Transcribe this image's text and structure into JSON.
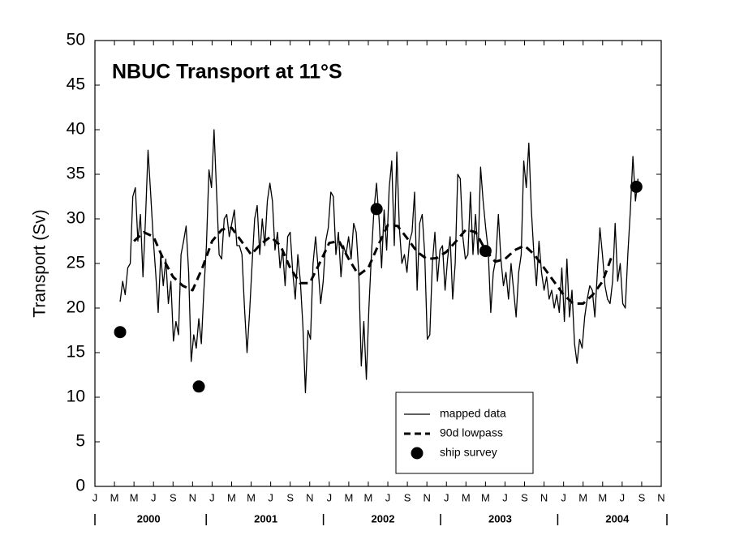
{
  "chart_data": {
    "type": "line",
    "title": "NBUC Transport at 11°S",
    "y_label": "Transport (Sv)",
    "xlim": [
      0,
      58
    ],
    "xticks": [
      {
        "value": 0,
        "label": "J"
      },
      {
        "value": 2,
        "label": "M"
      },
      {
        "value": 4,
        "label": "M"
      },
      {
        "value": 6,
        "label": "J"
      },
      {
        "value": 8,
        "label": "S"
      },
      {
        "value": 10,
        "label": "N"
      },
      {
        "value": 12,
        "label": "J"
      },
      {
        "value": 14,
        "label": "M"
      },
      {
        "value": 16,
        "label": "M"
      },
      {
        "value": 18,
        "label": "J"
      },
      {
        "value": 20,
        "label": "S"
      },
      {
        "value": 22,
        "label": "N"
      },
      {
        "value": 24,
        "label": "J"
      },
      {
        "value": 26,
        "label": "M"
      },
      {
        "value": 28,
        "label": "M"
      },
      {
        "value": 30,
        "label": "J"
      },
      {
        "value": 32,
        "label": "S"
      },
      {
        "value": 34,
        "label": "N"
      },
      {
        "value": 36,
        "label": "J"
      },
      {
        "value": 38,
        "label": "M"
      },
      {
        "value": 40,
        "label": "M"
      },
      {
        "value": 42,
        "label": "J"
      },
      {
        "value": 44,
        "label": "S"
      },
      {
        "value": 46,
        "label": "N"
      },
      {
        "value": 48,
        "label": "J"
      },
      {
        "value": 50,
        "label": "M"
      },
      {
        "value": 52,
        "label": "M"
      },
      {
        "value": 54,
        "label": "J"
      },
      {
        "value": 56,
        "label": "S"
      },
      {
        "value": 58,
        "label": "N"
      }
    ],
    "year_labels": [
      "2000",
      "2001",
      "2002",
      "2003",
      "2004"
    ],
    "ylim": [
      0,
      50
    ],
    "yticks": [
      0,
      5,
      10,
      15,
      20,
      25,
      30,
      35,
      40,
      45,
      50
    ],
    "grid": false,
    "legend_loc": "lower right",
    "series": [
      {
        "name": "mapped data",
        "color": "#000000",
        "line_style": "solid",
        "x": [
          2.58,
          2.84,
          3.1,
          3.36,
          3.62,
          3.88,
          4.14,
          4.4,
          4.66,
          4.92,
          5.18,
          5.44,
          5.7,
          5.96,
          6.22,
          6.48,
          6.74,
          7,
          7.26,
          7.52,
          7.78,
          8.04,
          8.3,
          8.56,
          8.82,
          9.08,
          9.34,
          9.6,
          9.86,
          10.12,
          10.38,
          10.64,
          10.9,
          11.16,
          11.42,
          11.68,
          11.94,
          12.2,
          12.46,
          12.72,
          12.98,
          13.24,
          13.5,
          13.76,
          14.02,
          14.28,
          14.54,
          14.8,
          15.06,
          15.32,
          15.58,
          15.84,
          16.1,
          16.36,
          16.62,
          16.88,
          17.14,
          17.4,
          17.66,
          17.92,
          18.18,
          18.44,
          18.7,
          18.96,
          19.22,
          19.48,
          19.74,
          20,
          20.26,
          20.52,
          20.78,
          21.04,
          21.3,
          21.56,
          21.82,
          22.08,
          22.34,
          22.6,
          22.86,
          23.12,
          23.38,
          23.64,
          23.9,
          24.16,
          24.42,
          24.68,
          24.94,
          25.2,
          25.46,
          25.72,
          25.98,
          26.24,
          26.5,
          26.76,
          27.02,
          27.28,
          27.54,
          27.8,
          28.06,
          28.32,
          28.58,
          28.84,
          29.1,
          29.36,
          29.62,
          29.88,
          30.14,
          30.4,
          30.66,
          30.92,
          31.18,
          31.44,
          31.7,
          31.96,
          32.22,
          32.48,
          32.74,
          33,
          33.26,
          33.52,
          33.78,
          34.04,
          34.3,
          34.56,
          34.82,
          35.08,
          35.34,
          35.6,
          35.86,
          36.12,
          36.38,
          36.64,
          36.9,
          37.16,
          37.42,
          37.68,
          37.94,
          38.2,
          38.46,
          38.72,
          38.98,
          39.24,
          39.5,
          39.76,
          40.02,
          40.28,
          40.54,
          40.8,
          41.06,
          41.32,
          41.58,
          41.84,
          42.1,
          42.36,
          42.62,
          42.88,
          43.14,
          43.4,
          43.66,
          43.92,
          44.18,
          44.44,
          44.7,
          44.96,
          45.22,
          45.48,
          45.74,
          46,
          46.26,
          46.52,
          46.78,
          47.04,
          47.3,
          47.56,
          47.82,
          48.08,
          48.34,
          48.6,
          48.86,
          49.12,
          49.38,
          49.64,
          49.9,
          50.16,
          50.42,
          50.68,
          50.94,
          51.2,
          51.46,
          51.72,
          51.98,
          52.24,
          52.5,
          52.76,
          53.02,
          53.28,
          53.54,
          53.8,
          54.06,
          54.32,
          54.58,
          54.84,
          55.1,
          55.36,
          55.62
        ],
        "values": [
          20.7,
          23,
          21.5,
          24.5,
          25,
          32.5,
          33.5,
          27.5,
          30.5,
          23.5,
          30,
          37.7,
          33,
          28,
          24,
          19.5,
          26,
          22.5,
          25.5,
          20.5,
          23,
          16.3,
          18.5,
          17,
          26,
          27.5,
          29.2,
          24,
          14,
          17,
          15.5,
          18.8,
          16,
          22,
          27,
          35.5,
          33.5,
          40,
          33,
          26,
          25.5,
          30,
          30.5,
          28,
          29.5,
          31,
          27,
          27,
          26,
          20,
          15,
          19.5,
          25,
          30,
          31.5,
          26,
          30,
          27,
          32,
          34,
          32,
          26.5,
          28.5,
          24.5,
          26.5,
          22.5,
          28,
          28.5,
          24,
          21,
          26,
          23,
          18,
          10.5,
          17.5,
          16.5,
          25,
          28,
          24.5,
          20.5,
          23,
          27.5,
          29,
          33,
          32.5,
          26,
          28.5,
          23.5,
          27,
          26,
          28,
          25.5,
          29.5,
          28.5,
          24,
          13.5,
          18.5,
          12,
          20,
          26,
          31,
          34,
          30,
          24.5,
          31,
          26.5,
          33.5,
          36.5,
          27,
          37.5,
          29,
          25,
          26,
          24,
          27.5,
          28.5,
          33,
          22,
          29.5,
          30.5,
          26,
          16.5,
          17,
          25,
          28.5,
          23,
          26.5,
          27,
          22,
          25.5,
          28,
          21,
          25,
          35,
          34.5,
          28,
          25.5,
          26,
          33,
          26,
          30.5,
          26,
          35.8,
          32,
          29,
          26.5,
          19.5,
          24,
          25.5,
          30.5,
          25.5,
          22.5,
          24,
          21,
          25,
          22,
          19,
          24,
          26,
          36.5,
          33.5,
          38.5,
          31,
          26,
          22.5,
          27.5,
          24,
          22,
          23.5,
          21,
          22,
          20,
          21.5,
          19.5,
          24.5,
          18.5,
          25.5,
          19,
          22,
          16,
          13.8,
          16.5,
          15.5,
          19,
          21,
          22.5,
          22,
          19,
          24,
          29,
          26,
          22.5,
          21,
          20.5,
          23,
          29.5,
          23,
          25,
          20.5,
          20,
          26,
          31,
          37,
          32,
          34.5
        ]
      },
      {
        "name": "90d lowpass",
        "color": "#000000",
        "line_style": "dashed",
        "x": [
          4,
          5,
          6,
          7,
          8,
          9,
          10,
          11,
          12,
          13,
          14,
          15,
          16,
          17,
          18,
          19,
          20,
          21,
          22,
          23,
          24,
          25,
          26,
          27,
          28,
          29,
          30,
          31,
          32,
          33,
          34,
          35,
          36,
          37,
          38,
          39,
          40,
          41,
          42,
          43,
          44,
          45,
          46,
          47,
          48,
          49,
          50,
          51,
          52,
          53
        ],
        "values": [
          27.5,
          28.5,
          28,
          25.5,
          23.5,
          22.5,
          22,
          24.5,
          27.5,
          28.8,
          29,
          27.5,
          26,
          27.2,
          28,
          27,
          24.5,
          22.8,
          22.8,
          25,
          27.3,
          27.5,
          25.5,
          23.7,
          24.5,
          27,
          29.3,
          29.2,
          27.8,
          26.3,
          25.5,
          25.6,
          26.3,
          27.5,
          28.8,
          28.5,
          26.5,
          25.2,
          25.5,
          26.5,
          27,
          26,
          24.5,
          23,
          21.5,
          20.5,
          20.5,
          21.5,
          23,
          26
        ]
      },
      {
        "name": "ship survey",
        "color": "#000000",
        "line_style": "none",
        "marker": "circle",
        "x": [
          2.58,
          10.64,
          28.85,
          40.0,
          55.45
        ],
        "values": [
          17.3,
          11.2,
          31.1,
          26.4,
          33.6
        ]
      }
    ]
  }
}
